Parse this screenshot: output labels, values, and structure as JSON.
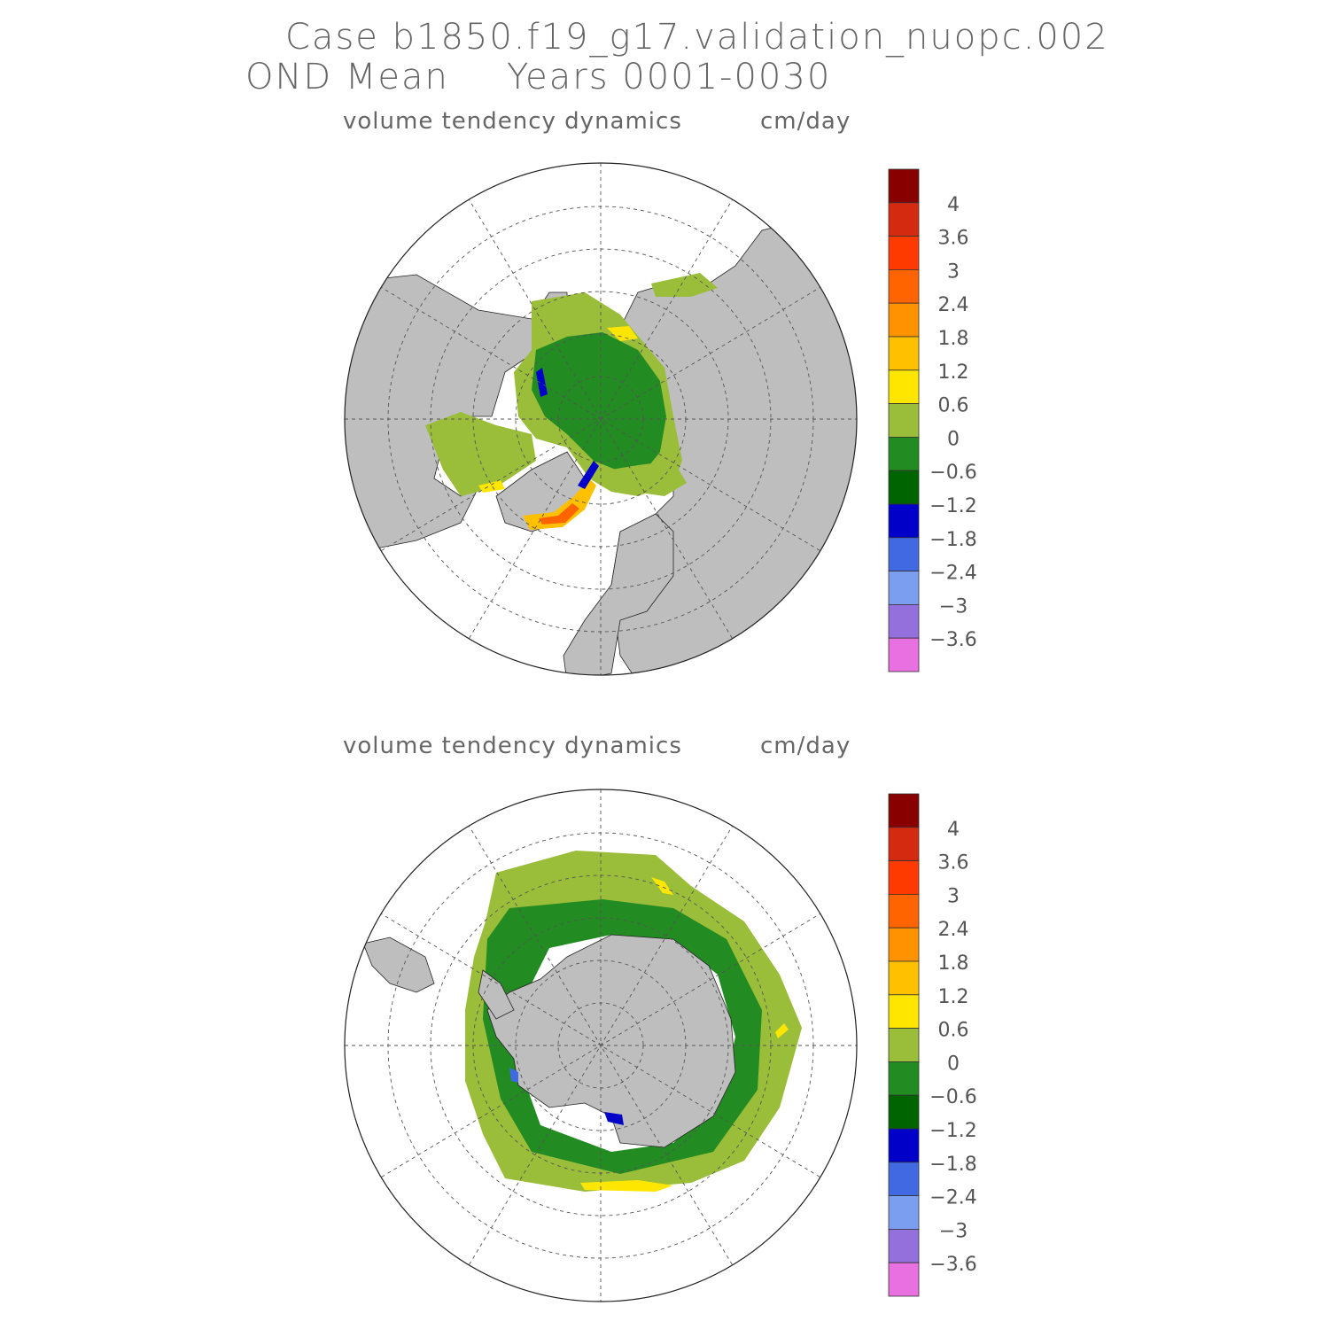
{
  "header": {
    "line1": "Case b1850.f19_g17.validation_nuopc.002",
    "line2_left": "OND Mean",
    "line2_right": "Years 0001-0030"
  },
  "panels": [
    {
      "hemisphere": "north",
      "variable": "volume tendency dynamics",
      "units": "cm/day"
    },
    {
      "hemisphere": "south",
      "variable": "volume tendency dynamics",
      "units": "cm/day"
    }
  ],
  "colorbar": {
    "colors": [
      "#880000",
      "#d42a10",
      "#ff3a00",
      "#ff6400",
      "#ff9200",
      "#ffc000",
      "#ffe600",
      "#9abd3a",
      "#228b22",
      "#006400",
      "#0000c8",
      "#4169e1",
      "#7b9ef0",
      "#9370db",
      "#e870e0"
    ],
    "labels": [
      "4",
      "3.6",
      "3",
      "2.4",
      "1.8",
      "1.2",
      "0.6",
      "0",
      "−0.6",
      "−1.2",
      "−1.8",
      "−2.4",
      "−3",
      "−3.6"
    ]
  },
  "map_colors": {
    "land": "#bebebe",
    "ocean": "#ffffff",
    "grid": "#555555"
  }
}
